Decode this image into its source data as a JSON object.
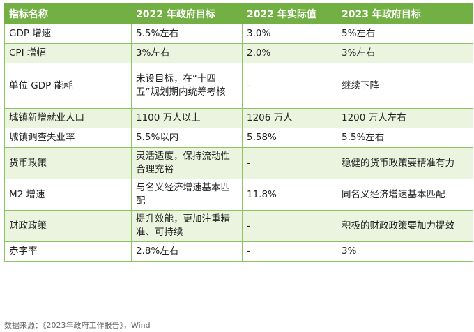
{
  "table": {
    "headers": [
      "指标名称",
      "2022 年政府目标",
      "2022 年实际值",
      "2023 年政府目标"
    ],
    "rows": [
      [
        "GDP 增速",
        "5.5%左右",
        "3.0%",
        "5%左右"
      ],
      [
        "CPI 增幅",
        "3%左右",
        "2.0%",
        "3%左右"
      ],
      [
        "单位 GDP 能耗",
        "未设目标，在“十四五”规划期内统筹考核",
        "-",
        "继续下降"
      ],
      [
        "城镇新增就业人口",
        "1100 万人以上",
        "1206 万人",
        "1200 万人左右"
      ],
      [
        "城镇调查失业率",
        "5.5%以内",
        "5.58%",
        "5.5%左右"
      ],
      [
        "货币政策",
        "灵活适度，保持流动性合理充裕",
        "-",
        "稳健的货币政策要精准有力"
      ],
      [
        "M2 增速",
        "与名义经济增速基本匹配",
        "11.8%",
        "同名义经济增速基本匹配"
      ],
      [
        "财政政策",
        "提升效能，更加注重精准、可持续",
        "-",
        "积极的财政政策要加力提效"
      ],
      [
        "赤字率",
        "2.8%左右",
        "-",
        "3%"
      ]
    ]
  },
  "source_note": "数据来源：《2023年政府工作报告》，Wind"
}
